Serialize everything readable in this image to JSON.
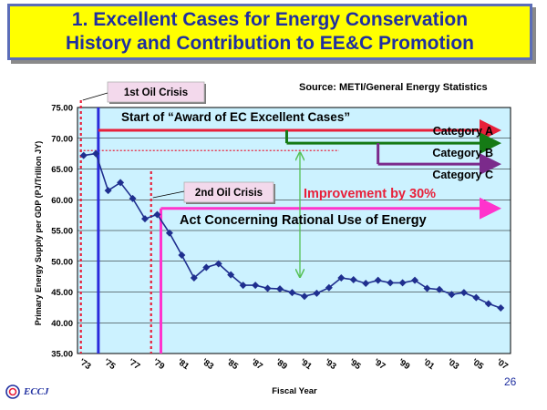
{
  "title": {
    "line1": "1. Excellent Cases for Energy Conservation",
    "line2": "History and Contribution to EE&C Promotion"
  },
  "source": "Source: METI/General Energy Statistics",
  "page_number": "26",
  "logo": {
    "text": "ECCJ",
    "icon": "eccj-logo-icon"
  },
  "colors": {
    "plot_bg": "#ccf2ff",
    "series": "#1f2f8f",
    "category_a": "#e8203a",
    "category_b": "#157a15",
    "category_c": "#7b2a8b",
    "act_line": "#ff33cc",
    "ec_award_line": "#2a2adb",
    "improvement": "#e8203a",
    "improvement_arrow": "#55c055",
    "crisis_line": "#e8203a"
  },
  "annotations": {
    "oil_crisis_1": "1st Oil Crisis",
    "oil_crisis_2": "2nd Oil Crisis",
    "ec_award": "Start of “Award of EC Excellent Cases”",
    "category_a": "Category A",
    "category_b": "Category B",
    "category_c": "Category C",
    "improvement": "Improvement by 30%",
    "act": "Act Concerning Rational Use of Energy"
  },
  "chart_data": {
    "type": "line",
    "title": "",
    "xlabel": "Fiscal Year",
    "ylabel": "Primary Energy Supply per GDP (PJ/Trillion JY)",
    "ylim": [
      35,
      75
    ],
    "yticks": [
      "35.00",
      "40.00",
      "45.00",
      "50.00",
      "55.00",
      "60.00",
      "65.00",
      "70.00",
      "75.00"
    ],
    "xticks": [
      "'73",
      "'75",
      "'77",
      "'79",
      "'81",
      "'83",
      "'85",
      "'87",
      "'89",
      "'91",
      "'93",
      "'95",
      "'97",
      "'99",
      "'01",
      "'03",
      "'05",
      "'07"
    ],
    "x": [
      1973,
      1974,
      1975,
      1976,
      1977,
      1978,
      1979,
      1980,
      1981,
      1982,
      1983,
      1984,
      1985,
      1986,
      1987,
      1988,
      1989,
      1990,
      1991,
      1992,
      1993,
      1994,
      1995,
      1996,
      1997,
      1998,
      1999,
      2000,
      2001,
      2002,
      2003,
      2004,
      2005,
      2006,
      2007
    ],
    "series": [
      {
        "name": "Primary Energy Supply per GDP",
        "values": [
          67.2,
          67.5,
          61.5,
          62.8,
          60.2,
          56.9,
          57.6,
          54.6,
          51.0,
          47.3,
          49.0,
          49.6,
          47.8,
          46.1,
          46.1,
          45.6,
          45.5,
          44.9,
          44.3,
          44.8,
          45.7,
          47.3,
          47.0,
          46.4,
          46.9,
          46.5,
          46.5,
          46.9,
          45.6,
          45.4,
          44.6,
          44.9,
          44.1,
          43.1,
          42.4
        ]
      }
    ],
    "reference_line_value": 68.0,
    "grid": true,
    "events": {
      "oil_crisis_1_year": 1973,
      "oil_crisis_2_year": 1978.5,
      "ec_award_year": 1974.2,
      "act_year": 1979.3,
      "category_a_year": 1990,
      "category_b_year": 1990,
      "category_c_year": 1997,
      "category_a_level": 71.3,
      "category_b_level": 69.2,
      "category_c_level": 65.8,
      "act_level": 58.6,
      "improvement_from": 68.0,
      "improvement_to": 47.6
    }
  }
}
